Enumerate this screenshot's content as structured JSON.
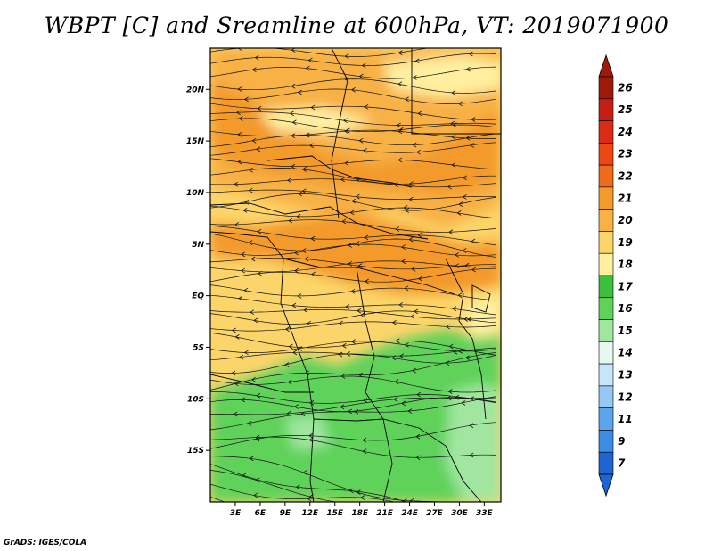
{
  "title": "WBPT [C] and Sreamline at 600hPa, VT: 2019071900",
  "credit": "GrADS: IGES/COLA",
  "map": {
    "lat_ticks": [
      "20N",
      "15N",
      "10N",
      "5N",
      "EQ",
      "5S",
      "10S",
      "15S"
    ],
    "lon_ticks": [
      "3E",
      "6E",
      "9E",
      "12E",
      "15E",
      "18E",
      "21E",
      "24E",
      "27E",
      "30E",
      "33E"
    ],
    "lat_range": [
      -20,
      24
    ],
    "lon_range": [
      0,
      35
    ],
    "fill_colors": {
      "green_light": "#5fd25a",
      "green_pale": "#a0e6a0",
      "yellow_pale": "#fff0a0",
      "yellow": "#fcd56a",
      "orange_light": "#f8b144",
      "orange": "#f39a29"
    }
  },
  "colorbar": {
    "labels": [
      "26",
      "25",
      "24",
      "23",
      "22",
      "21",
      "20",
      "19",
      "18",
      "17",
      "16",
      "15",
      "14",
      "13",
      "12",
      "11",
      "9",
      "7"
    ],
    "colors": [
      "#a01a0a",
      "#c41e12",
      "#dc2a14",
      "#ec4614",
      "#f06a1c",
      "#f39a29",
      "#f8b144",
      "#fcd56a",
      "#fff0a0",
      "#3cbf3c",
      "#5fd25a",
      "#a0e6a0",
      "#e6f8f0",
      "#c8e6fa",
      "#96c8f5",
      "#5aa5ec",
      "#3c8ce6",
      "#1e64d2"
    ]
  }
}
